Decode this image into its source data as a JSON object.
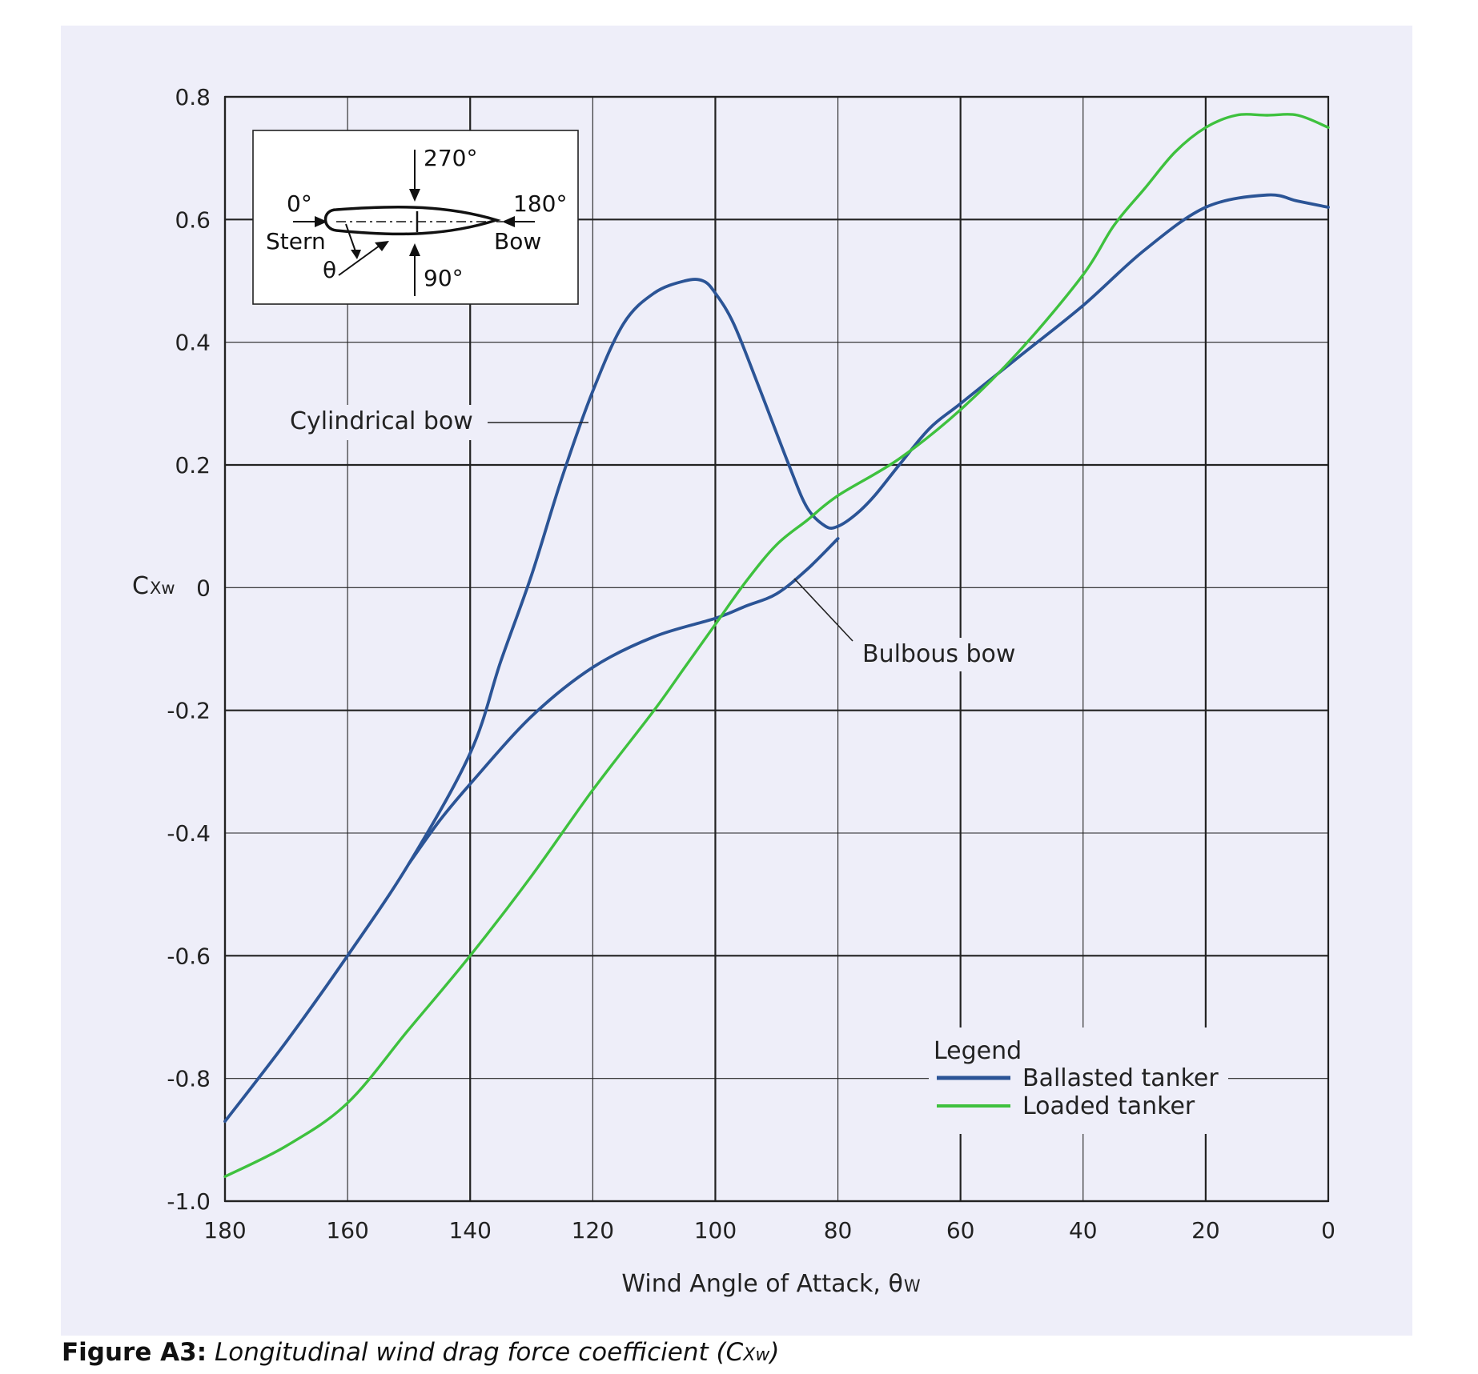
{
  "caption": {
    "label": "Figure A3:",
    "text": "Longitudinal wind drag force coefficient (C",
    "sub": "Xw",
    "close": ")"
  },
  "chart_data": {
    "type": "line",
    "xlabel_main": "Wind Angle of Attack, θ",
    "xlabel_sub": "W",
    "ylabel_main": "C",
    "ylabel_sub": "Xw",
    "xlim": [
      180,
      0
    ],
    "ylim": [
      -1.0,
      0.8
    ],
    "x_reversed": true,
    "grid": true,
    "x_ticks": [
      "180",
      "160",
      "140",
      "120",
      "100",
      "80",
      "60",
      "40",
      "20",
      "0"
    ],
    "y_ticks": [
      "0.8",
      "0.6",
      "0.4",
      "0.2",
      "0",
      "-0.2",
      "-0.4",
      "-0.6",
      "-0.8",
      "-1.0"
    ],
    "legend": {
      "title": "Legend",
      "placement": "bottom-right",
      "entries": [
        "Ballasted tanker",
        "Loaded tanker"
      ]
    },
    "colors": {
      "ballasted": "#2b5496",
      "loaded": "#3ec13e"
    },
    "series": [
      {
        "name": "Ballasted tanker",
        "variant": "Cylindrical bow",
        "color": "#2b5496",
        "x": [
          180,
          170,
          160,
          150,
          140,
          135,
          130,
          125,
          120,
          115,
          110,
          105,
          102,
          100,
          97,
          93,
          88,
          85,
          82,
          80,
          77,
          74,
          70,
          65,
          60,
          50,
          40,
          30,
          20,
          10,
          5,
          0
        ],
        "y": [
          -0.87,
          -0.74,
          -0.6,
          -0.45,
          -0.27,
          -0.12,
          0.02,
          0.18,
          0.32,
          0.43,
          0.48,
          0.5,
          0.5,
          0.48,
          0.43,
          0.33,
          0.2,
          0.13,
          0.1,
          0.1,
          0.12,
          0.15,
          0.2,
          0.26,
          0.3,
          0.38,
          0.46,
          0.55,
          0.62,
          0.64,
          0.63,
          0.62
        ]
      },
      {
        "name": "Ballasted tanker",
        "variant": "Bulbous bow",
        "color": "#2b5496",
        "x": [
          150,
          145,
          140,
          130,
          120,
          110,
          100,
          95,
          90,
          85,
          80
        ],
        "y": [
          -0.45,
          -0.38,
          -0.32,
          -0.21,
          -0.13,
          -0.08,
          -0.05,
          -0.03,
          -0.01,
          0.03,
          0.08
        ]
      },
      {
        "name": "Loaded tanker",
        "color": "#3ec13e",
        "x": [
          180,
          170,
          160,
          150,
          140,
          130,
          120,
          110,
          105,
          100,
          95,
          90,
          85,
          80,
          70,
          60,
          50,
          40,
          35,
          30,
          25,
          20,
          15,
          10,
          5,
          0
        ],
        "y": [
          -0.96,
          -0.91,
          -0.84,
          -0.72,
          -0.6,
          -0.47,
          -0.33,
          -0.2,
          -0.13,
          -0.06,
          0.01,
          0.07,
          0.11,
          0.15,
          0.21,
          0.29,
          0.39,
          0.51,
          0.59,
          0.65,
          0.71,
          0.75,
          0.77,
          0.77,
          0.77,
          0.75
        ]
      }
    ],
    "annotations": [
      {
        "text": "Cylindrical bow",
        "x": 145,
        "y": 0.28
      },
      {
        "text": "Bulbous bow",
        "x": 80,
        "y": -0.11
      }
    ],
    "inset": {
      "top_label": "270°",
      "bottom_label": "90°",
      "left_angle": "0°",
      "left_name": "Stern",
      "right_angle": "180°",
      "right_name": "Bow",
      "theta": "θ"
    }
  }
}
